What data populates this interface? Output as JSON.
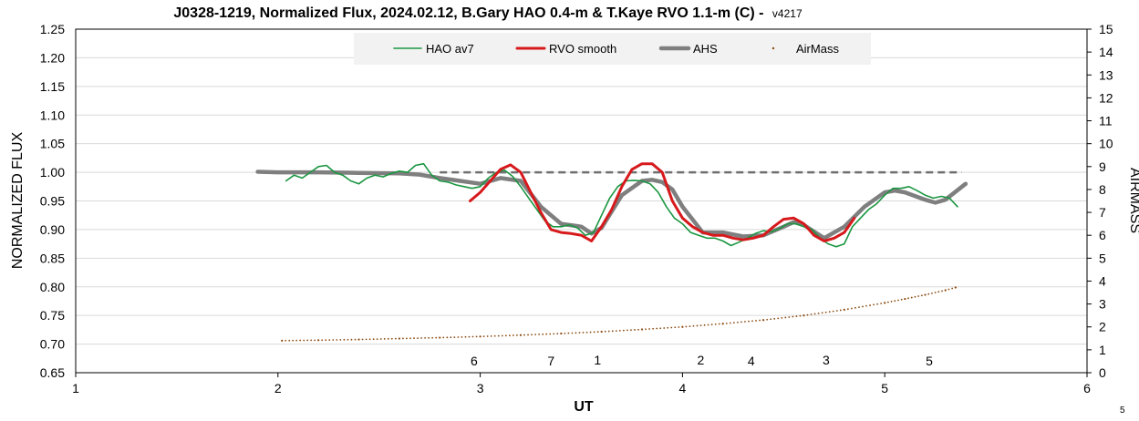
{
  "chart_data": {
    "type": "line",
    "title": "J0328-1219, Normalized Flux, 2024.02.12, B.Gary HAO 0.4-m & T.Kaye RVO 1.1-m (C) -",
    "title_version": "v4217",
    "xlabel": "UT",
    "ylabel": "NORMALIZED FLUX",
    "y2label": "AIRMASS",
    "xlim": [
      1,
      6
    ],
    "ylim": [
      0.65,
      1.25
    ],
    "y2lim": [
      0,
      15
    ],
    "xticks": [
      "1",
      "2",
      "3",
      "4",
      "5",
      "6"
    ],
    "yticks": [
      "0.65",
      "0.70",
      "0.75",
      "0.80",
      "0.85",
      "0.90",
      "0.95",
      "1.00",
      "1.05",
      "1.10",
      "1.15",
      "1.20",
      "1.25"
    ],
    "y2ticks": [
      "0",
      "1",
      "2",
      "3",
      "4",
      "5",
      "6",
      "7",
      "8",
      "9",
      "10",
      "11",
      "12",
      "13",
      "14",
      "15"
    ],
    "grid": true,
    "legend_position": "top-center",
    "corner_label": "5",
    "reference_line": {
      "y": 1.0,
      "x_start": 2.8,
      "x_end": 5.38,
      "color": "#707070"
    },
    "series": [
      {
        "name": "HAO av7",
        "color": "#1a9641",
        "style": "line",
        "axis": "left",
        "x": [
          2.04,
          2.08,
          2.12,
          2.16,
          2.2,
          2.24,
          2.28,
          2.32,
          2.36,
          2.4,
          2.44,
          2.48,
          2.52,
          2.56,
          2.6,
          2.64,
          2.68,
          2.72,
          2.76,
          2.8,
          2.84,
          2.88,
          2.92,
          2.96,
          3.0,
          3.04,
          3.08,
          3.12,
          3.16,
          3.2,
          3.24,
          3.28,
          3.32,
          3.36,
          3.4,
          3.44,
          3.48,
          3.52,
          3.56,
          3.6,
          3.64,
          3.68,
          3.72,
          3.76,
          3.8,
          3.84,
          3.88,
          3.92,
          3.96,
          4.0,
          4.04,
          4.08,
          4.12,
          4.16,
          4.2,
          4.24,
          4.28,
          4.32,
          4.36,
          4.4,
          4.44,
          4.48,
          4.52,
          4.56,
          4.6,
          4.64,
          4.68,
          4.72,
          4.76,
          4.8,
          4.84,
          4.88,
          4.92,
          4.96,
          5.0,
          5.04,
          5.08,
          5.12,
          5.16,
          5.2,
          5.24,
          5.28,
          5.32,
          5.36
        ],
        "values": [
          0.985,
          0.995,
          0.99,
          1.0,
          1.01,
          1.012,
          1.0,
          0.995,
          0.985,
          0.98,
          0.99,
          0.995,
          0.992,
          0.998,
          1.002,
          1.0,
          1.012,
          1.015,
          0.995,
          0.985,
          0.983,
          0.978,
          0.975,
          0.972,
          0.975,
          0.99,
          1.0,
          1.004,
          0.993,
          0.975,
          0.955,
          0.935,
          0.915,
          0.905,
          0.905,
          0.908,
          0.903,
          0.89,
          0.895,
          0.925,
          0.955,
          0.975,
          0.985,
          0.986,
          0.985,
          0.98,
          0.965,
          0.94,
          0.92,
          0.91,
          0.895,
          0.89,
          0.885,
          0.885,
          0.88,
          0.872,
          0.878,
          0.885,
          0.893,
          0.898,
          0.896,
          0.902,
          0.91,
          0.91,
          0.905,
          0.9,
          0.885,
          0.875,
          0.87,
          0.875,
          0.905,
          0.92,
          0.935,
          0.945,
          0.96,
          0.972,
          0.972,
          0.975,
          0.968,
          0.96,
          0.955,
          0.958,
          0.955,
          0.94
        ]
      },
      {
        "name": "RVO smooth",
        "color": "#d7191c",
        "style": "line",
        "axis": "left",
        "x": [
          2.95,
          3.0,
          3.05,
          3.1,
          3.15,
          3.2,
          3.25,
          3.3,
          3.35,
          3.4,
          3.45,
          3.5,
          3.55,
          3.6,
          3.65,
          3.7,
          3.75,
          3.8,
          3.85,
          3.9,
          3.95,
          4.0,
          4.05,
          4.1,
          4.15,
          4.2,
          4.25,
          4.3,
          4.35,
          4.4,
          4.45,
          4.5,
          4.55,
          4.6,
          4.65,
          4.7,
          4.75,
          4.8,
          4.85
        ],
        "values": [
          0.95,
          0.965,
          0.985,
          1.005,
          1.013,
          1.0,
          0.965,
          0.93,
          0.9,
          0.895,
          0.893,
          0.89,
          0.88,
          0.905,
          0.935,
          0.975,
          1.005,
          1.015,
          1.015,
          1.0,
          0.95,
          0.92,
          0.905,
          0.895,
          0.89,
          0.89,
          0.885,
          0.882,
          0.885,
          0.89,
          0.905,
          0.918,
          0.92,
          0.91,
          0.89,
          0.88,
          0.885,
          0.895,
          0.92
        ]
      },
      {
        "name": "AHS",
        "color": "#7f7f7f",
        "style": "thick-line",
        "axis": "left",
        "x": [
          1.9,
          2.0,
          2.2,
          2.4,
          2.6,
          2.7,
          2.8,
          2.9,
          3.0,
          3.1,
          3.2,
          3.3,
          3.4,
          3.5,
          3.55,
          3.6,
          3.7,
          3.8,
          3.85,
          3.9,
          3.95,
          4.0,
          4.1,
          4.2,
          4.3,
          4.4,
          4.5,
          4.55,
          4.6,
          4.7,
          4.8,
          4.9,
          5.0,
          5.05,
          5.1,
          5.2,
          5.25,
          5.3,
          5.4
        ],
        "values": [
          1.001,
          1.0,
          1.0,
          0.999,
          0.998,
          0.996,
          0.99,
          0.985,
          0.98,
          0.99,
          0.985,
          0.94,
          0.91,
          0.905,
          0.893,
          0.903,
          0.96,
          0.985,
          0.987,
          0.983,
          0.97,
          0.94,
          0.895,
          0.895,
          0.888,
          0.89,
          0.905,
          0.913,
          0.908,
          0.885,
          0.905,
          0.94,
          0.965,
          0.968,
          0.965,
          0.952,
          0.947,
          0.952,
          0.98
        ]
      },
      {
        "name": "AirMass",
        "color": "#8c4a10",
        "style": "dots",
        "axis": "right",
        "x": [
          2.02,
          2.2,
          2.4,
          2.6,
          2.8,
          3.0,
          3.2,
          3.4,
          3.6,
          3.8,
          4.0,
          4.2,
          4.4,
          4.6,
          4.8,
          5.0,
          5.1,
          5.2,
          5.3,
          5.35
        ],
        "values": [
          1.4,
          1.42,
          1.45,
          1.49,
          1.53,
          1.58,
          1.64,
          1.71,
          1.79,
          1.89,
          2.0,
          2.14,
          2.3,
          2.5,
          2.75,
          3.05,
          3.22,
          3.4,
          3.6,
          3.72
        ]
      }
    ],
    "annotations": [
      {
        "label": "6",
        "x": 2.97,
        "y": 0.671
      },
      {
        "label": "7",
        "x": 3.35,
        "y": 0.671
      },
      {
        "label": "1",
        "x": 3.58,
        "y": 0.672
      },
      {
        "label": "2",
        "x": 4.09,
        "y": 0.672
      },
      {
        "label": "4",
        "x": 4.34,
        "y": 0.671
      },
      {
        "label": "3",
        "x": 4.71,
        "y": 0.672
      },
      {
        "label": "5",
        "x": 5.22,
        "y": 0.671
      }
    ]
  }
}
